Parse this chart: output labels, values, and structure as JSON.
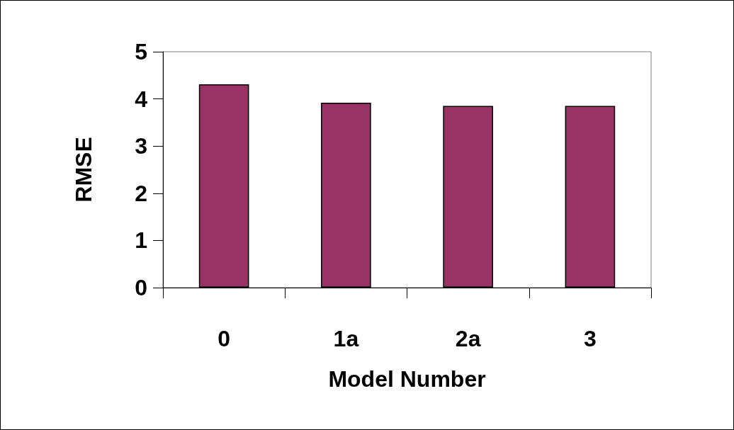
{
  "chart_data": {
    "type": "bar",
    "xlabel": "Model Number",
    "ylabel": "RMSE",
    "categories": [
      "0",
      "1a",
      "2a",
      "3"
    ],
    "values": [
      4.31,
      3.92,
      3.85,
      3.85
    ],
    "color": "#993366",
    "ylim": [
      0,
      5
    ],
    "yticks": [
      0,
      1,
      2,
      3,
      4,
      5
    ],
    "grid": false
  }
}
